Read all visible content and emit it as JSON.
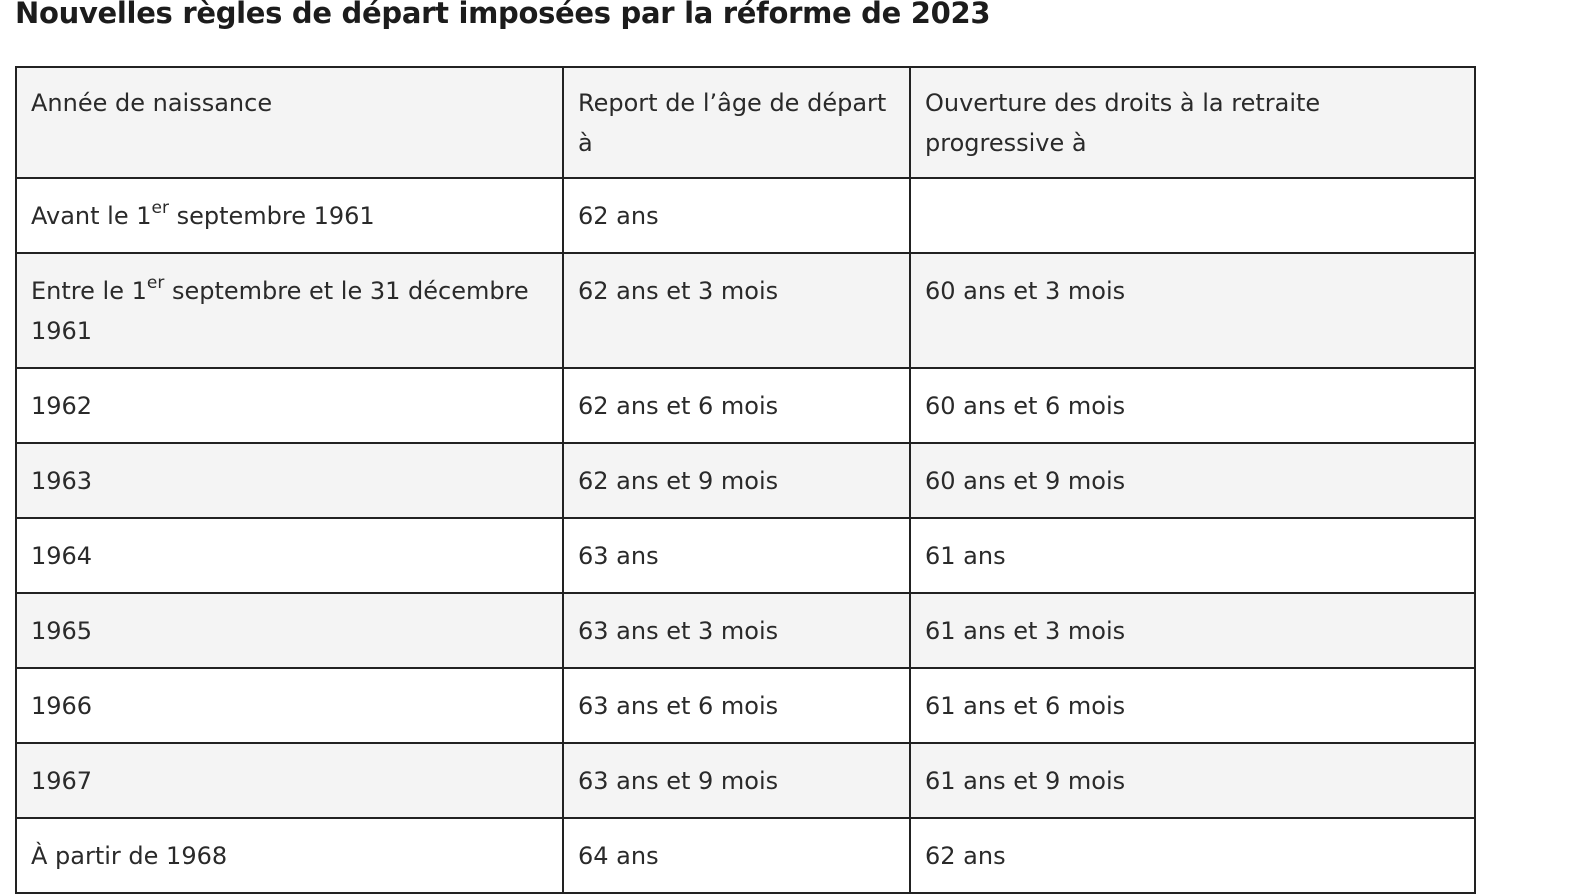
{
  "title": "Nouvelles règles de départ imposées par la réforme de 2023",
  "table": {
    "headers": [
      "Année de naissance",
      "Report de l’âge de départ à",
      "Ouverture des droits à la retraite progressive à"
    ],
    "rows": [
      {
        "birth": {
          "before": "Avant le 1",
          "sup": "er",
          "after": " septembre 1961"
        },
        "age": "62 ans",
        "progressive": ""
      },
      {
        "birth": {
          "before": "Entre le 1",
          "sup": "er",
          "after": " septembre et le 31 décembre 1961"
        },
        "age": "62 ans et 3 mois",
        "progressive": "60 ans et 3 mois"
      },
      {
        "birth": {
          "before": "1962",
          "sup": "",
          "after": ""
        },
        "age": "62 ans et 6 mois",
        "progressive": "60 ans et 6 mois"
      },
      {
        "birth": {
          "before": "1963",
          "sup": "",
          "after": ""
        },
        "age": "62 ans et 9 mois",
        "progressive": "60 ans et 9 mois"
      },
      {
        "birth": {
          "before": "1964",
          "sup": "",
          "after": ""
        },
        "age": "63 ans",
        "progressive": "61 ans"
      },
      {
        "birth": {
          "before": "1965",
          "sup": "",
          "after": ""
        },
        "age": "63 ans et 3 mois",
        "progressive": "61 ans et 3 mois"
      },
      {
        "birth": {
          "before": "1966",
          "sup": "",
          "after": ""
        },
        "age": "63 ans et 6 mois",
        "progressive": "61 ans et 6 mois"
      },
      {
        "birth": {
          "before": "1967",
          "sup": "",
          "after": ""
        },
        "age": "63 ans et 9 mois",
        "progressive": "61 ans et 9 mois"
      },
      {
        "birth": {
          "before": "À partir de 1968",
          "sup": "",
          "after": ""
        },
        "age": "64 ans",
        "progressive": "62 ans"
      }
    ]
  },
  "colors": {
    "border": "#222222",
    "shaded_row": "#f4f4f4",
    "plain_row": "#ffffff",
    "text": "#2a2a2a"
  }
}
